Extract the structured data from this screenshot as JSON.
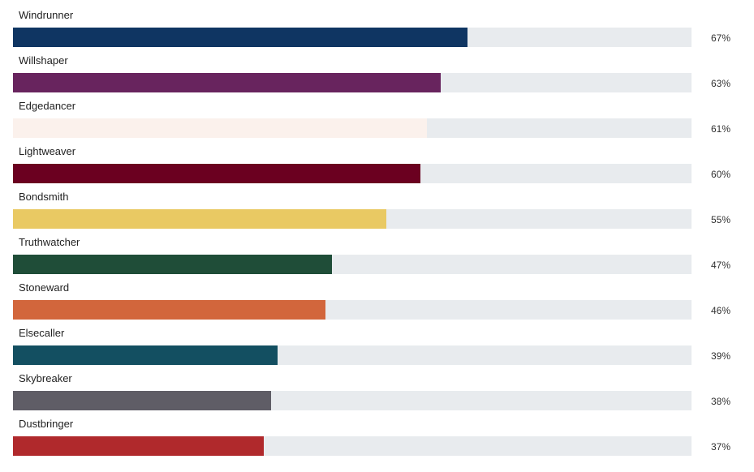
{
  "chart_data": {
    "type": "bar",
    "orientation": "horizontal",
    "xlim": [
      0,
      100
    ],
    "categories": [
      "Windrunner",
      "Willshaper",
      "Edgedancer",
      "Lightweaver",
      "Bondsmith",
      "Truthwatcher",
      "Stoneward",
      "Elsecaller",
      "Skybreaker",
      "Dustbringer"
    ],
    "values": [
      67,
      63,
      61,
      60,
      55,
      47,
      46,
      39,
      38,
      37
    ],
    "value_labels": [
      "67%",
      "63%",
      "61%",
      "60%",
      "55%",
      "47%",
      "46%",
      "39%",
      "38%",
      "37%"
    ],
    "colors": [
      "#0f3562",
      "#68245e",
      "#fbf1ec",
      "#6b0020",
      "#e9c963",
      "#1f4d38",
      "#d2663c",
      "#134f61",
      "#5f5d66",
      "#b0292c"
    ],
    "track_color": "#e8ebee",
    "grid": false,
    "legend": "none"
  }
}
